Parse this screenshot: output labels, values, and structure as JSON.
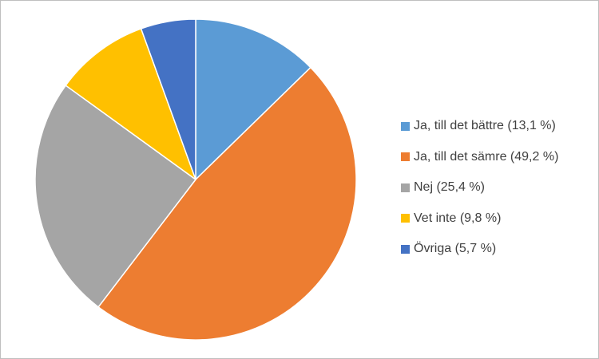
{
  "chart_data": {
    "type": "pie",
    "title": "",
    "legend_position": "right",
    "slices": [
      {
        "label": "Ja, till det bättre (13,1 %)",
        "value": 13.1,
        "color": "#5B9BD5"
      },
      {
        "label": "Ja, till det sämre (49,2 %)",
        "value": 49.2,
        "color": "#ED7D31"
      },
      {
        "label": "Nej (25,4 %)",
        "value": 25.4,
        "color": "#A5A5A5"
      },
      {
        "label": "Vet inte (9,8 %)",
        "value": 9.8,
        "color": "#FFC000"
      },
      {
        "label": "Övriga (5,7 %)",
        "value": 5.7,
        "color": "#4472C4"
      }
    ]
  }
}
